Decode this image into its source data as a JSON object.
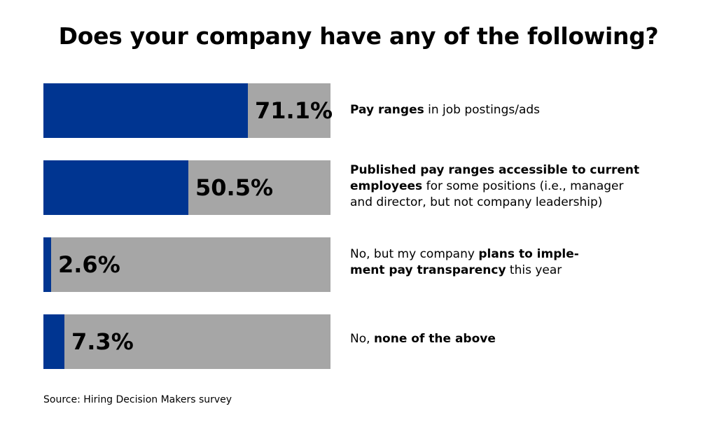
{
  "title": "Does your company have any of the following?",
  "source": "Source: Hiring Decision Makers survey",
  "colors": {
    "fill": "#003591",
    "track": "#a6a6a6"
  },
  "chart_data": {
    "type": "bar",
    "orientation": "horizontal",
    "title": "Does your company have any of the following?",
    "xlim": [
      0,
      100
    ],
    "categories": [
      "Pay ranges in job postings/ads",
      "Published pay ranges accessible to current employees for some positions (i.e., manager and director, but not company leadership)",
      "No, but my company plans to implement pay transparency this year",
      "No, none of the above"
    ],
    "values": [
      71.1,
      50.5,
      2.6,
      7.3
    ],
    "value_labels": [
      "71.1%",
      "50.5%",
      "2.6%",
      "7.3%"
    ],
    "label_parts": [
      [
        {
          "text": "Pay ranges",
          "bold": true
        },
        {
          "text": " in job postings/ads",
          "bold": false
        }
      ],
      [
        {
          "text": "Published pay ranges accessible to current",
          "bold": true,
          "break": true
        },
        {
          "text": "employees",
          "bold": true
        },
        {
          "text": " for some positions (i.e., manager",
          "bold": false,
          "break": true
        },
        {
          "text": "and director, but not company leadership)",
          "bold": false
        }
      ],
      [
        {
          "text": "No, but my company ",
          "bold": false
        },
        {
          "text": "plans to imple-",
          "bold": true,
          "break": true
        },
        {
          "text": "ment pay transparency",
          "bold": true
        },
        {
          "text": " this year",
          "bold": false
        }
      ],
      [
        {
          "text": "No, ",
          "bold": false
        },
        {
          "text": "none of the above",
          "bold": true
        }
      ]
    ]
  }
}
